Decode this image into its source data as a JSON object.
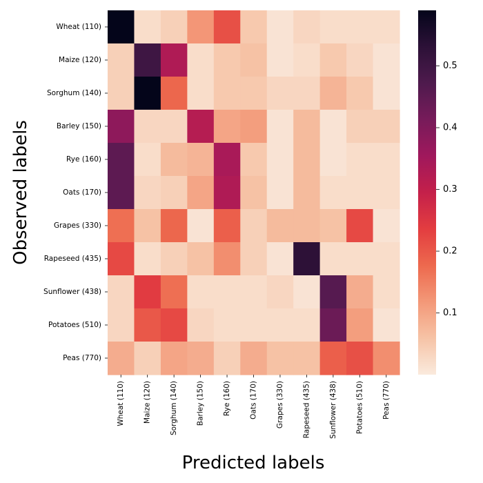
{
  "chart_data": {
    "type": "heatmap",
    "xlabel": "Predicted labels",
    "ylabel": "Observed labels",
    "x_categories": [
      "Wheat (110)",
      "Maize (120)",
      "Sorghum (140)",
      "Barley (150)",
      "Rye (160)",
      "Oats (170)",
      "Grapes (330)",
      "Rapeseed (435)",
      "Sunflower (438)",
      "Potatoes (510)",
      "Peas (770)"
    ],
    "y_categories": [
      "Wheat (110)",
      "Maize (120)",
      "Sorghum (140)",
      "Barley (150)",
      "Rye (160)",
      "Oats (170)",
      "Grapes (330)",
      "Rapeseed (435)",
      "Sunflower (438)",
      "Potatoes (510)",
      "Peas (770)"
    ],
    "values": [
      [
        0.59,
        0.02,
        0.04,
        0.12,
        0.21,
        0.05,
        0.01,
        0.03,
        0.02,
        0.02,
        0.02
      ],
      [
        0.04,
        0.5,
        0.33,
        0.02,
        0.05,
        0.06,
        0.01,
        0.02,
        0.05,
        0.03,
        0.01
      ],
      [
        0.04,
        0.59,
        0.18,
        0.02,
        0.05,
        0.05,
        0.03,
        0.03,
        0.08,
        0.05,
        0.01
      ],
      [
        0.38,
        0.03,
        0.03,
        0.32,
        0.1,
        0.11,
        0.01,
        0.07,
        0.01,
        0.04,
        0.04
      ],
      [
        0.45,
        0.02,
        0.07,
        0.08,
        0.34,
        0.05,
        0.01,
        0.07,
        0.01,
        0.02,
        0.02
      ],
      [
        0.45,
        0.03,
        0.04,
        0.1,
        0.33,
        0.06,
        0.01,
        0.07,
        0.02,
        0.02,
        0.02
      ],
      [
        0.17,
        0.06,
        0.18,
        0.01,
        0.19,
        0.04,
        0.07,
        0.07,
        0.06,
        0.22,
        0.01
      ],
      [
        0.22,
        0.02,
        0.04,
        0.06,
        0.13,
        0.04,
        0.01,
        0.53,
        0.02,
        0.02,
        0.02
      ],
      [
        0.03,
        0.24,
        0.17,
        0.02,
        0.02,
        0.02,
        0.03,
        0.01,
        0.46,
        0.09,
        0.02
      ],
      [
        0.03,
        0.2,
        0.22,
        0.03,
        0.02,
        0.02,
        0.02,
        0.02,
        0.43,
        0.11,
        0.01
      ],
      [
        0.09,
        0.04,
        0.1,
        0.09,
        0.04,
        0.09,
        0.06,
        0.06,
        0.19,
        0.21,
        0.13
      ]
    ],
    "colorbar": {
      "min": 0.0,
      "max": 0.59,
      "ticks": [
        0.1,
        0.2,
        0.3,
        0.4,
        0.5
      ],
      "tick_labels": [
        "0.1",
        "0.2",
        "0.3",
        "0.4",
        "0.5"
      ],
      "colormap": "rocket_r"
    }
  }
}
